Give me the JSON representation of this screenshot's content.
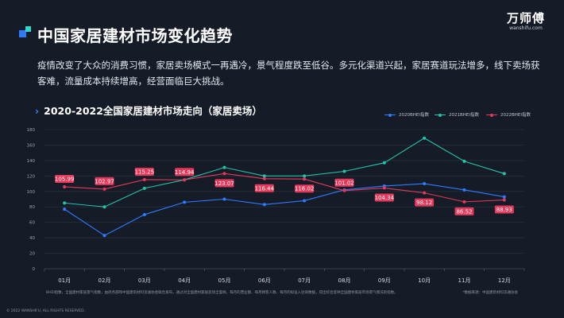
{
  "brand": {
    "name": "万师傅",
    "url": "wanshifu.com"
  },
  "page_title": "中国家居建材市场变化趋势",
  "description": "疫情改变了大众的消费习惯，家居卖场模式一再遇冷，景气程度跌至低谷。多元化渠道兴起，家居赛道玩法增多，线下卖场获客难，流量成本持续增高，经营面临巨大挑战。",
  "chart_title": "2020-2022全国家居建材市场走向（家居卖场）",
  "footnote_left": "BHEI指数，全国建材家居景气指数，由商务部和中国建筑材料流通协会联合发布，通过对全国建材家居卖场全面样，每月的营业额、每月顾客人数、每月的拟设入驻商数据，得出综合反映全国建材家居市场景气情况的指数。",
  "footnote_right": "*数据来源：中国建筑材料流通协会",
  "copyright": "© 2022 WANSHIFU, ALL RIGHTS RESERVED.",
  "colors": {
    "2020": "#2f7bff",
    "2021": "#22c4a8",
    "2022": "#e5385a",
    "label_bg": "#e5385a"
  },
  "chart_data": {
    "type": "line",
    "categories": [
      "01月",
      "02月",
      "03月",
      "04月",
      "05月",
      "06月",
      "07月",
      "08月",
      "09月",
      "10月",
      "11月",
      "12月"
    ],
    "ylim": [
      0,
      180
    ],
    "yticks": [
      0,
      20,
      40,
      60,
      80,
      100,
      120,
      140,
      160,
      180
    ],
    "grid": true,
    "legend_position": "top-right",
    "series": [
      {
        "name": "2020BHEI指数",
        "color": "#2f7bff",
        "values": [
          77,
          43,
          70,
          86,
          90,
          83,
          88,
          102,
          107,
          110,
          102,
          93
        ],
        "labels": false
      },
      {
        "name": "2021BHEI指数",
        "color": "#22c4a8",
        "values": [
          85,
          80,
          104,
          115,
          131,
          120,
          120,
          126,
          137,
          169,
          139,
          123
        ],
        "labels": false
      },
      {
        "name": "2022BHEI指数",
        "color": "#e5385a",
        "values": [
          105.99,
          102.97,
          115.25,
          114.94,
          123.07,
          116.44,
          116.02,
          101.02,
          104.34,
          98.12,
          86.52,
          88.93
        ],
        "labels": true
      }
    ],
    "data_labels": [
      "105.99",
      "102.97",
      "115.25",
      "114.94",
      "123.07",
      "116.44",
      "116.02",
      "101.02",
      "104.34",
      "98.12",
      "86.52",
      "88.93"
    ]
  }
}
